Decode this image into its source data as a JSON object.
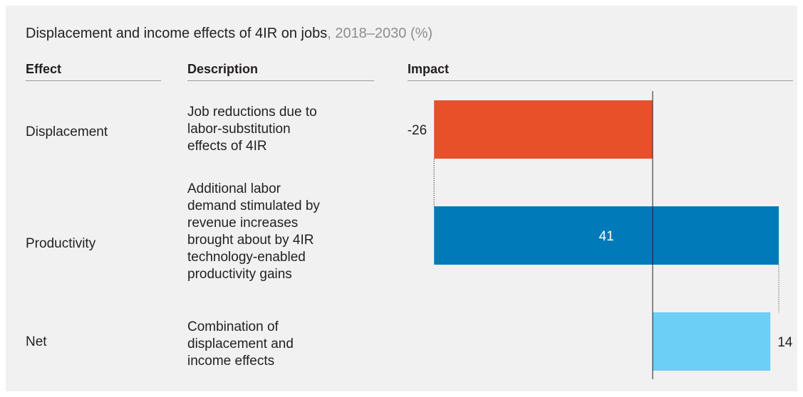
{
  "title": {
    "main": "Displacement and income effects of 4IR on jobs",
    "sub": ", 2018–2030 (%)"
  },
  "headers": {
    "effect": "Effect",
    "description": "Description",
    "impact": "Impact"
  },
  "rows": [
    {
      "effect": "Displacement",
      "description": [
        "Job reductions due to",
        "labor-substitution",
        "effects of 4IR"
      ]
    },
    {
      "effect": "Productivity",
      "description": [
        "Additional labor",
        "demand stimulated by",
        "revenue increases",
        "brought about by 4IR",
        "technology-enabled",
        "productivity gains"
      ]
    },
    {
      "effect": "Net",
      "description": [
        "Combination of",
        "displacement and",
        "income effects"
      ]
    }
  ],
  "colors": {
    "displacement": "#e8502a",
    "productivity": "#007ab8",
    "net": "#6ccff6",
    "background": "#f1f1f2"
  },
  "chart_data": {
    "type": "bar",
    "orientation": "horizontal",
    "style": "waterfall",
    "categories": [
      "Displacement",
      "Productivity",
      "Net"
    ],
    "values": [
      -26,
      41,
      14
    ],
    "labels": [
      "-26",
      "41",
      "14"
    ],
    "grid": false
  }
}
